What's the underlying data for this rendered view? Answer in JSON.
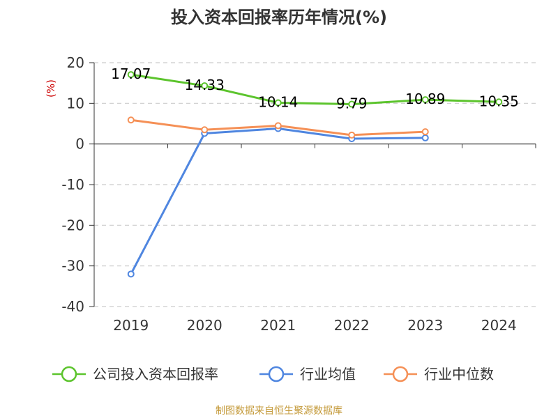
{
  "chart_data": {
    "type": "line",
    "title": "投入资本回报率历年情况(%)",
    "unit_label": "(%)",
    "categories": [
      "2019",
      "2020",
      "2021",
      "2022",
      "2023",
      "2024"
    ],
    "ylim": [
      -40,
      20
    ],
    "yticks": [
      20,
      10,
      0,
      -10,
      -20,
      -30,
      -40
    ],
    "grid": true,
    "legend_position": "bottom",
    "series": [
      {
        "name": "公司投入资本回报率",
        "color": "#5cc42d",
        "show_labels": true,
        "values": [
          17.07,
          14.33,
          10.14,
          9.79,
          10.89,
          10.35
        ]
      },
      {
        "name": "行业均值",
        "color": "#4f86e0",
        "show_labels": false,
        "values": [
          -32.0,
          2.6,
          3.8,
          1.3,
          1.5,
          null
        ]
      },
      {
        "name": "行业中位数",
        "color": "#f59056",
        "show_labels": false,
        "values": [
          5.9,
          3.5,
          4.5,
          2.2,
          3.0,
          null
        ]
      }
    ]
  },
  "source": "制图数据来自恒生聚源数据库"
}
